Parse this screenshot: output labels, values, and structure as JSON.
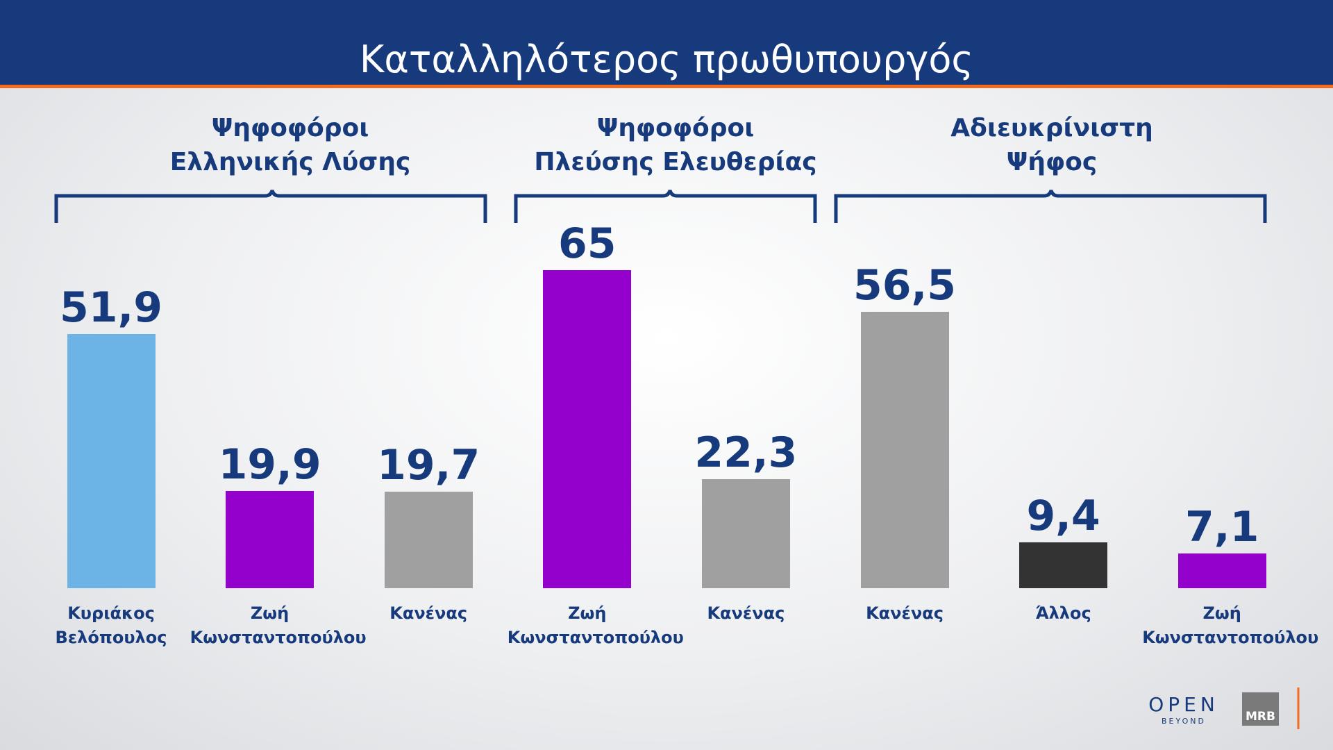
{
  "title": "Καταλληλότερος πρωθυπουργός",
  "chart_data": [
    {
      "type": "bar",
      "title": "Ψηφοφόροι\nΕλληνικής Λύσης",
      "categories": [
        "Κυριάκος Βελόπουλος",
        "Ζωή Κωνσταντοπούλου",
        "Κανένας"
      ],
      "values": [
        51.9,
        19.9,
        19.7
      ],
      "value_labels": [
        "51,9",
        "19,9",
        "19,7"
      ],
      "colors": [
        "#6cb4e6",
        "#9400cc",
        "#a0a0a0"
      ]
    },
    {
      "type": "bar",
      "title": "Ψηφοφόροι\nΠλεύσης Ελευθερίας",
      "categories": [
        "Ζωή Κωνσταντοπούλου",
        "Κανένας"
      ],
      "values": [
        65,
        22.3
      ],
      "value_labels": [
        "65",
        "22,3"
      ],
      "colors": [
        "#9400cc",
        "#a0a0a0"
      ]
    },
    {
      "type": "bar",
      "title": "Αδιευκρίνιστη\nΨήφος",
      "categories": [
        "Κανένας",
        "Άλλος",
        "Ζωή Κωνσταντοπούλου"
      ],
      "values": [
        56.5,
        9.4,
        7.1
      ],
      "value_labels": [
        "56,5",
        "9,4",
        "7,1"
      ],
      "colors": [
        "#a0a0a0",
        "#333333",
        "#9400cc"
      ]
    }
  ],
  "footer": {
    "brand": "OPEN",
    "brand_sub": "BEYOND",
    "source": "MRB"
  }
}
